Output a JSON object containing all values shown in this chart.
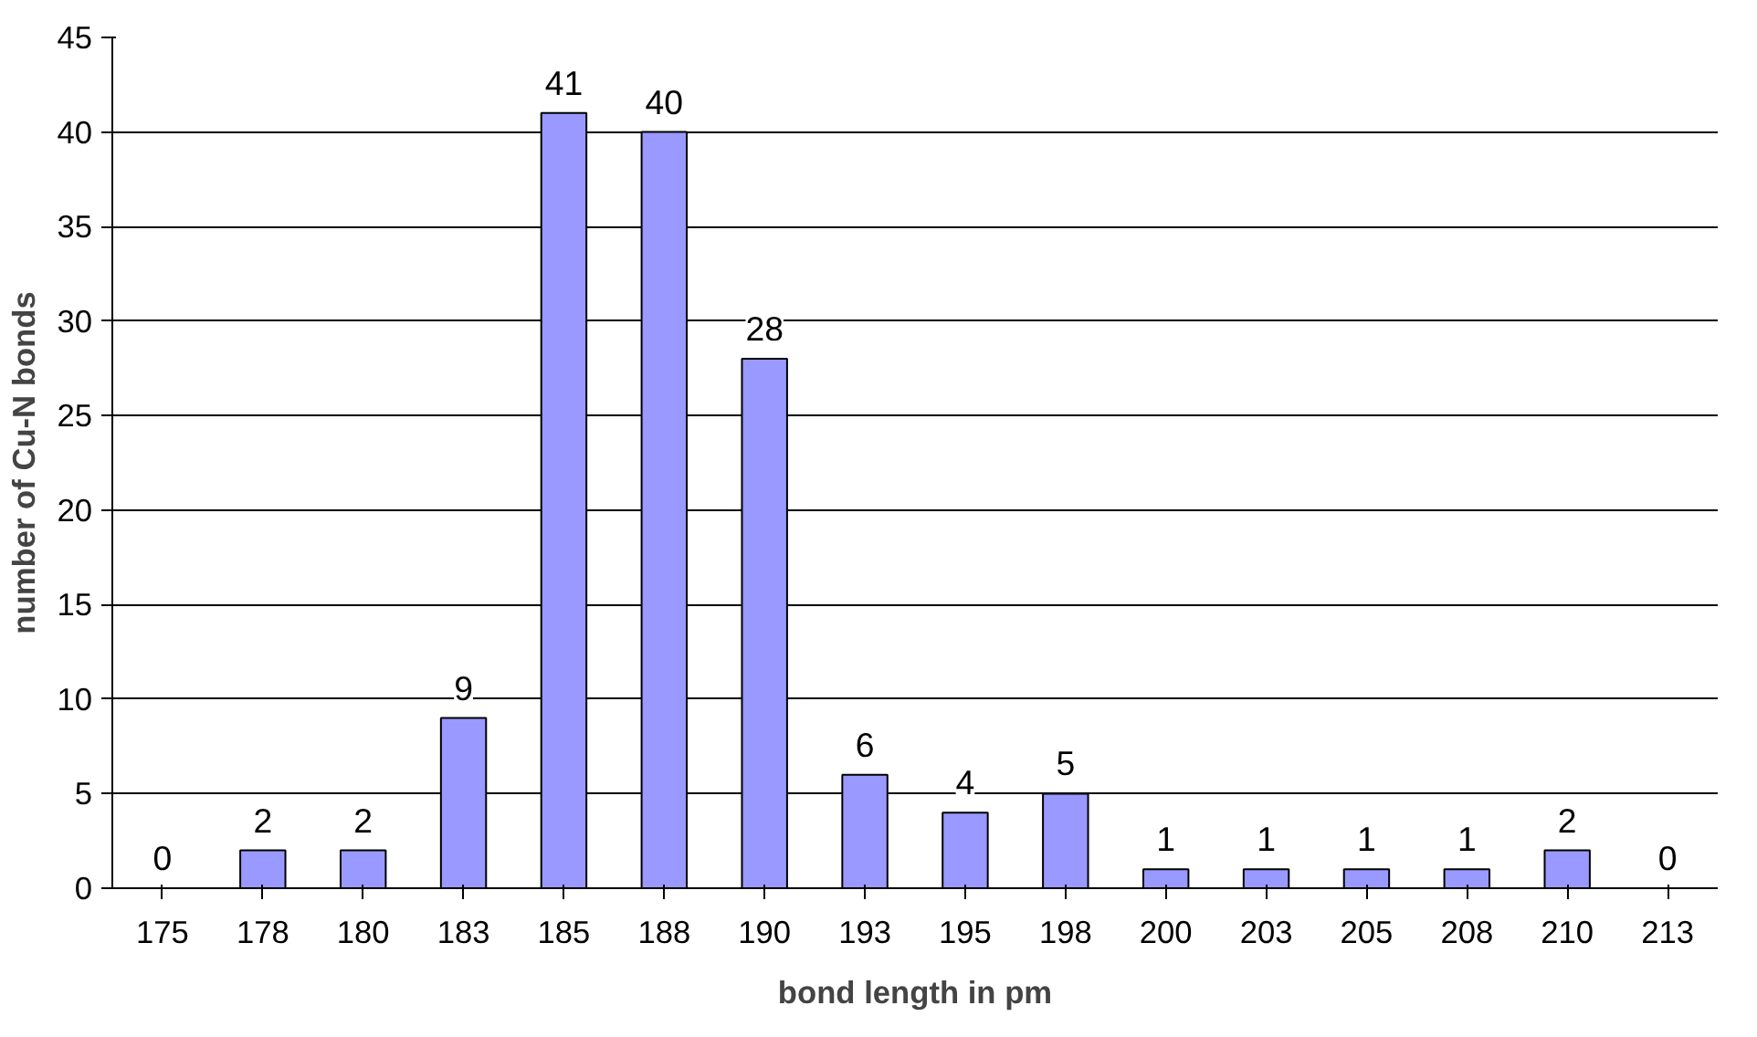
{
  "chart_data": {
    "type": "bar",
    "xlabel": "bond length in pm",
    "ylabel": "number of Cu-N bonds",
    "categories": [
      "175",
      "178",
      "180",
      "183",
      "185",
      "188",
      "190",
      "193",
      "195",
      "198",
      "200",
      "203",
      "205",
      "208",
      "210",
      "213"
    ],
    "values": [
      0,
      2,
      2,
      9,
      41,
      40,
      28,
      6,
      4,
      5,
      1,
      1,
      1,
      1,
      2,
      0
    ],
    "color": "#9999ff",
    "ylim": [
      0,
      45
    ],
    "yticks": [
      0,
      5,
      10,
      15,
      20,
      25,
      30,
      35,
      40,
      45
    ],
    "grid": "y",
    "data_labels": true
  }
}
